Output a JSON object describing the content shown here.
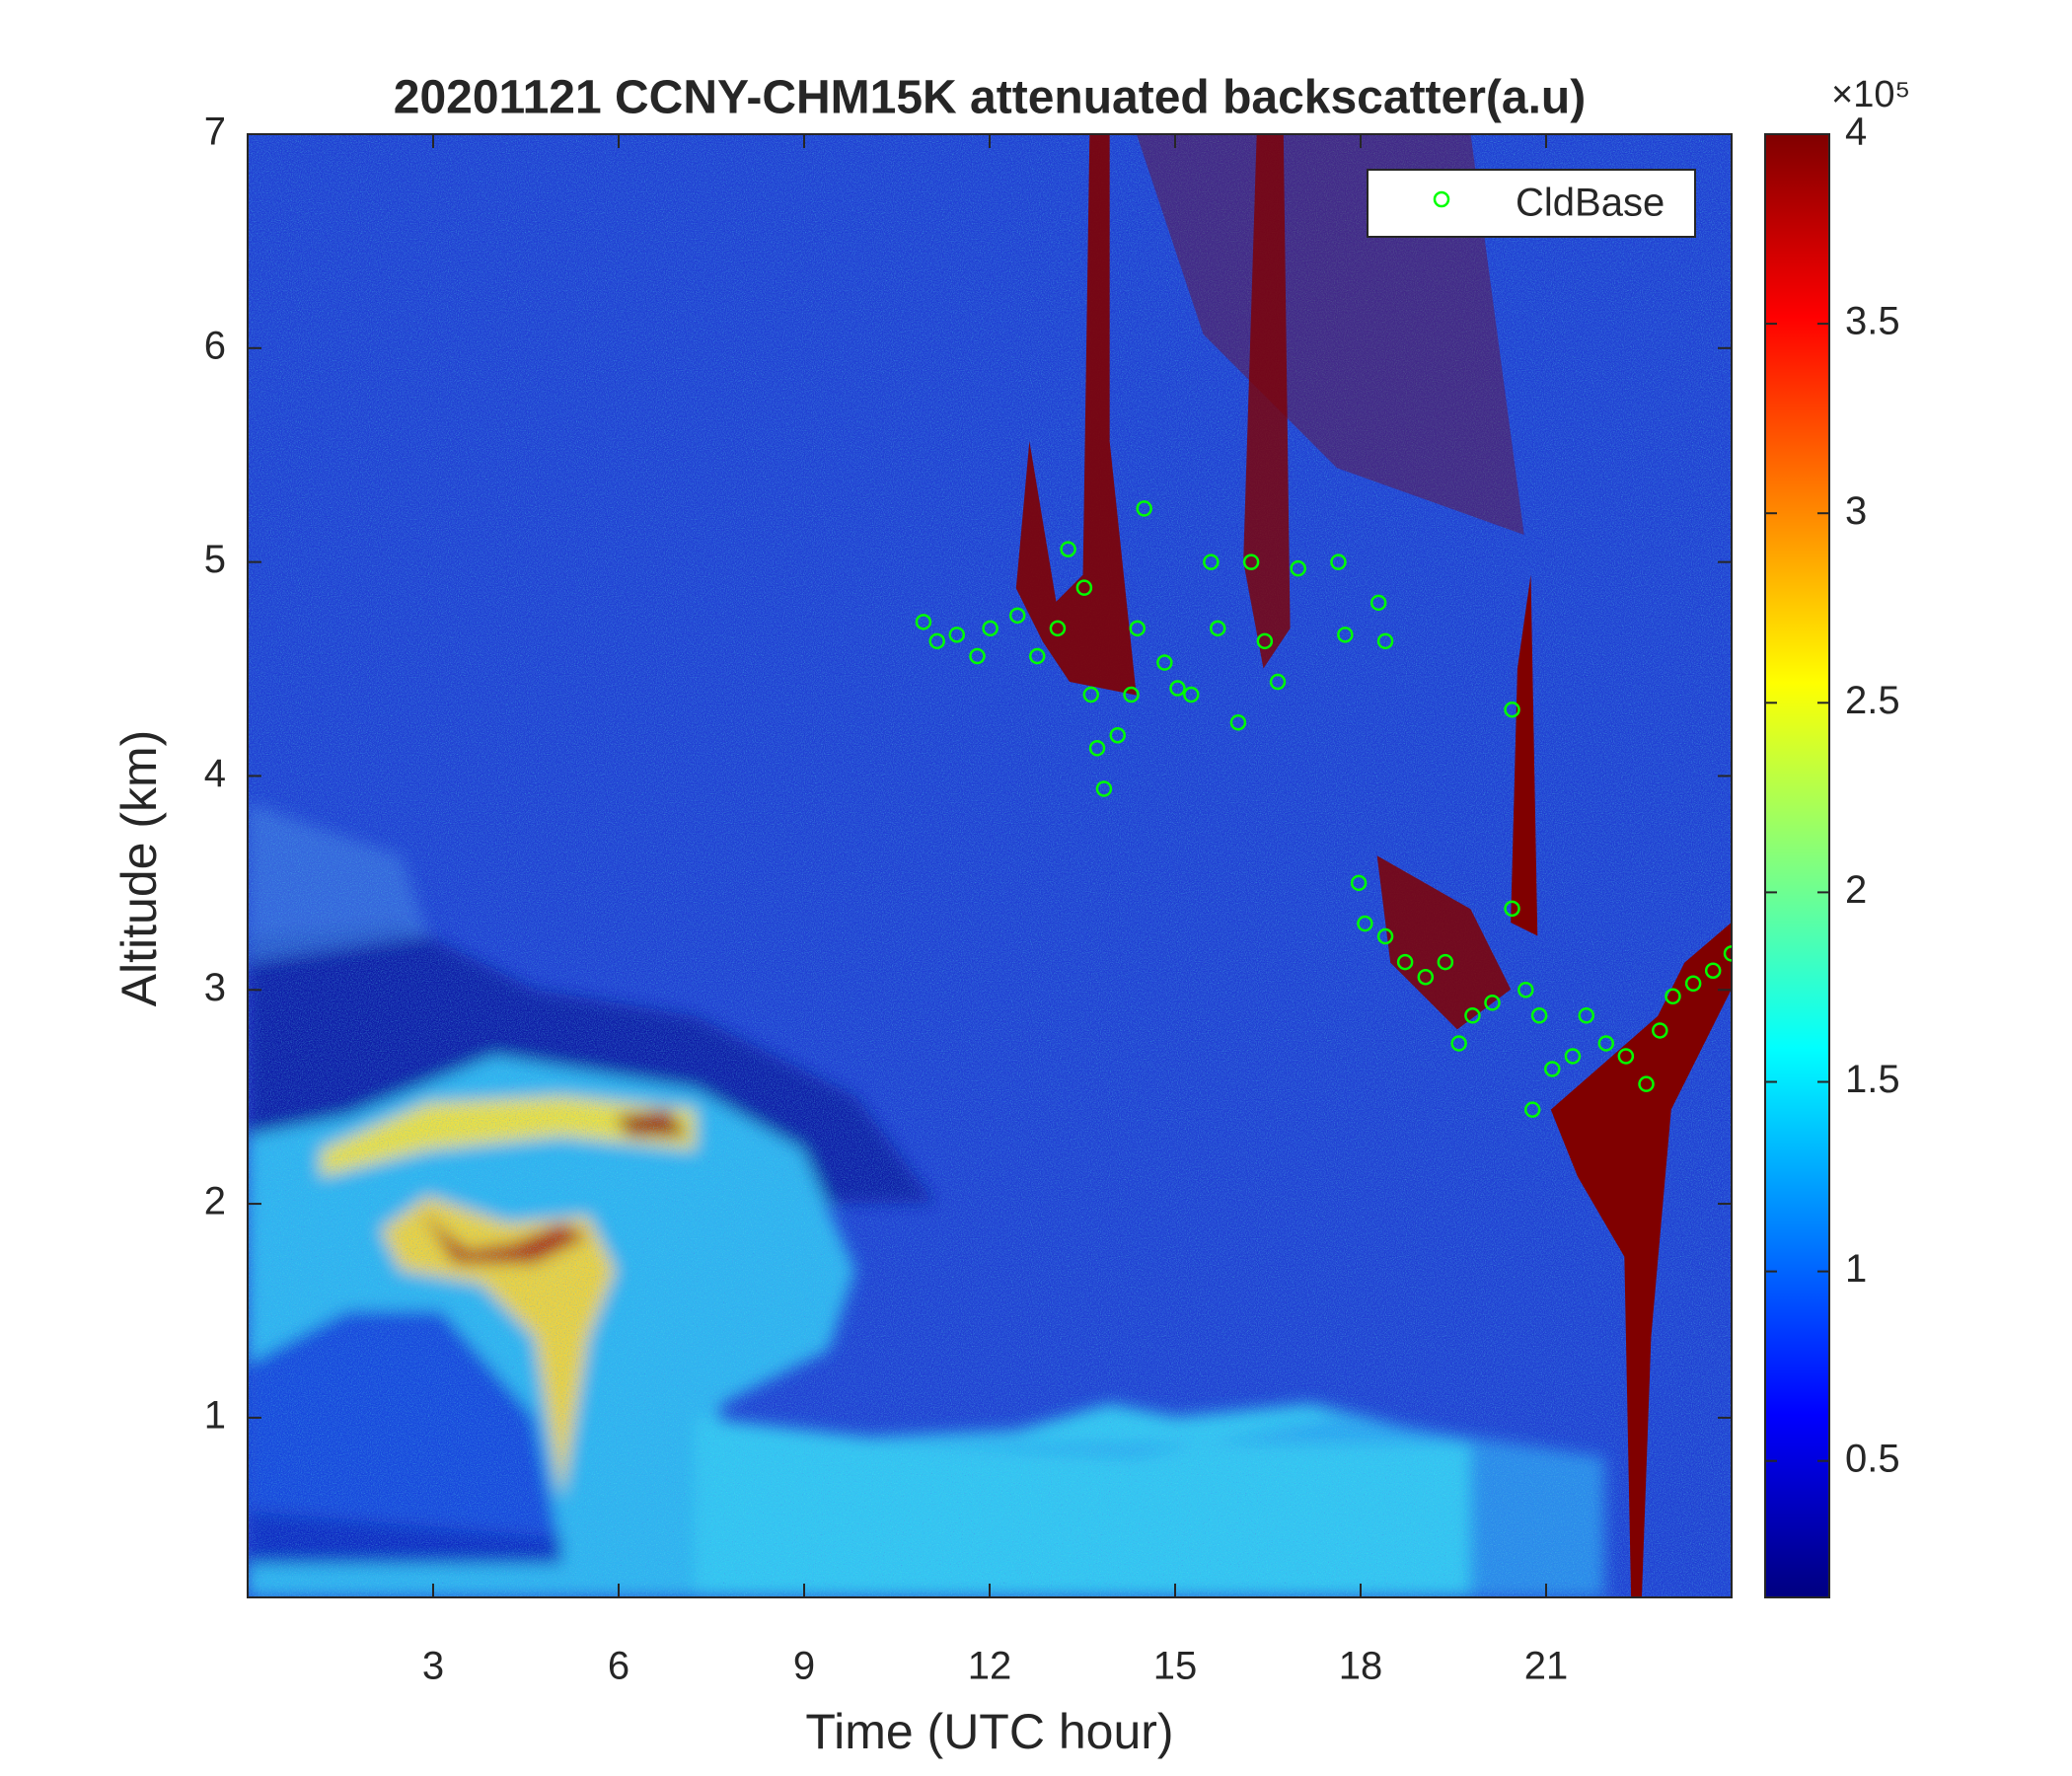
{
  "chart_data": {
    "type": "scatter",
    "title": "20201121 CCNY-CHM15K attenuated backscatter(a.u)",
    "x_label": "Time (UTC hour)",
    "y_label": "Altitude (km)",
    "xlim": [
      0,
      24
    ],
    "xticks": [
      3,
      6,
      9,
      12,
      15,
      18,
      21
    ],
    "ylim": [
      0.16,
      7
    ],
    "yticks": [
      1,
      2,
      3,
      4,
      5,
      6,
      7
    ],
    "legend": "northeast",
    "series": [
      {
        "name": "CldBase",
        "color": "#00ff00",
        "x": [
          10.93,
          11.15,
          11.47,
          11.8,
          12.01,
          12.45,
          12.77,
          13.1,
          13.27,
          13.53,
          13.64,
          13.74,
          13.85,
          14.07,
          14.29,
          14.39,
          14.5,
          14.83,
          15.04,
          15.26,
          15.58,
          15.69,
          16.02,
          16.23,
          16.45,
          16.66,
          16.99,
          17.64,
          17.75,
          18.29,
          18.4,
          17.97,
          18.07,
          18.4,
          18.72,
          19.05,
          19.37,
          19.59,
          19.81,
          20.13,
          20.45,
          20.45,
          20.67,
          20.89,
          20.78,
          21.1,
          21.43,
          21.65,
          21.97,
          22.29,
          22.62,
          22.84,
          23.05,
          23.38,
          23.7,
          24.0
        ],
        "values": [
          4.72,
          4.63,
          4.66,
          4.56,
          4.69,
          4.75,
          4.56,
          4.69,
          5.06,
          4.88,
          4.38,
          4.13,
          3.94,
          4.19,
          4.38,
          4.69,
          5.25,
          4.53,
          4.41,
          4.38,
          5.0,
          4.69,
          4.25,
          5.0,
          4.63,
          4.44,
          4.97,
          5.0,
          4.66,
          4.81,
          4.63,
          3.5,
          3.31,
          3.25,
          3.13,
          3.06,
          3.13,
          2.75,
          2.88,
          2.94,
          3.38,
          4.31,
          3.0,
          2.88,
          2.44,
          2.63,
          2.69,
          2.88,
          2.75,
          2.69,
          2.56,
          2.81,
          2.97,
          3.03,
          3.09,
          3.17
        ]
      }
    ],
    "colorbar": {
      "label": "×10⁵",
      "lim": [
        0.14,
        4
      ],
      "ticks": [
        0.5,
        1,
        1.5,
        2,
        2.5,
        3,
        3.5,
        4
      ],
      "colormap": "jet"
    }
  }
}
